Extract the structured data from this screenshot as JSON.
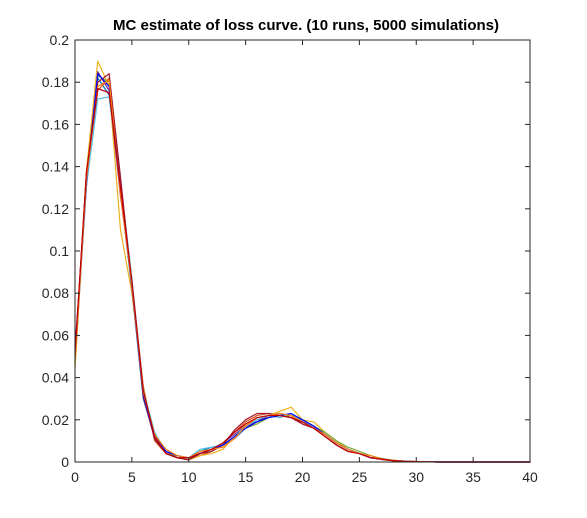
{
  "chart_data": {
    "type": "line",
    "title": "MC estimate of loss curve. (10 runs, 5000 simulations)",
    "xlabel": "",
    "ylabel": "",
    "xlim": [
      0,
      40
    ],
    "ylim": [
      0,
      0.2
    ],
    "xticks": [
      0,
      5,
      10,
      15,
      20,
      25,
      30,
      35,
      40
    ],
    "xtick_labels": [
      "0",
      "5",
      "10",
      "15",
      "20",
      "25",
      "30",
      "35",
      "40"
    ],
    "yticks": [
      0,
      0.02,
      0.04,
      0.06,
      0.08,
      0.1,
      0.12,
      0.14,
      0.16,
      0.18,
      0.2
    ],
    "ytick_labels": [
      "0",
      "0.02",
      "0.04",
      "0.06",
      "0.08",
      "0.1",
      "0.12",
      "0.14",
      "0.16",
      "0.18",
      "0.2"
    ],
    "grid": false,
    "x": [
      0,
      1,
      2,
      3,
      4,
      5,
      6,
      7,
      8,
      9,
      10,
      11,
      12,
      13,
      14,
      15,
      16,
      17,
      18,
      19,
      20,
      21,
      22,
      23,
      24,
      25,
      26,
      27,
      28,
      29,
      30,
      31,
      32,
      33,
      34,
      35,
      36,
      37,
      38,
      39,
      40
    ],
    "series": [
      {
        "color": "#0072BD",
        "values": [
          0.05,
          0.135,
          0.182,
          0.174,
          0.128,
          0.082,
          0.03,
          0.012,
          0.004,
          0.002,
          0.002,
          0.005,
          0.007,
          0.008,
          0.011,
          0.016,
          0.02,
          0.021,
          0.023,
          0.022,
          0.019,
          0.017,
          0.013,
          0.009,
          0.006,
          0.004,
          0.002,
          0.0015,
          0.0008,
          0.0004,
          0.0002,
          0.0001,
          0.0001,
          0,
          0,
          0,
          0,
          0,
          0,
          0,
          0
        ]
      },
      {
        "color": "#D95319",
        "values": [
          0.046,
          0.132,
          0.176,
          0.182,
          0.131,
          0.085,
          0.036,
          0.01,
          0.004,
          0.002,
          0.002,
          0.003,
          0.005,
          0.009,
          0.014,
          0.019,
          0.022,
          0.023,
          0.022,
          0.022,
          0.018,
          0.016,
          0.012,
          0.008,
          0.005,
          0.004,
          0.002,
          0.0012,
          0.0006,
          0.0003,
          0.0002,
          0.0001,
          0,
          0,
          0,
          0,
          0,
          0,
          0,
          0,
          0
        ]
      },
      {
        "color": "#EDB120",
        "values": [
          0.044,
          0.138,
          0.19,
          0.178,
          0.11,
          0.08,
          0.035,
          0.013,
          0.005,
          0.002,
          0.001,
          0.003,
          0.004,
          0.006,
          0.012,
          0.018,
          0.021,
          0.022,
          0.024,
          0.026,
          0.02,
          0.019,
          0.014,
          0.01,
          0.006,
          0.004,
          0.003,
          0.0015,
          0.0009,
          0.0004,
          0.0002,
          0.0001,
          0,
          0,
          0,
          0,
          0,
          0,
          0,
          0,
          0
        ]
      },
      {
        "color": "#7E2F8E",
        "values": [
          0.054,
          0.13,
          0.185,
          0.176,
          0.126,
          0.086,
          0.033,
          0.011,
          0.004,
          0.003,
          0.002,
          0.004,
          0.006,
          0.009,
          0.013,
          0.017,
          0.019,
          0.022,
          0.023,
          0.021,
          0.019,
          0.016,
          0.013,
          0.009,
          0.006,
          0.004,
          0.002,
          0.0013,
          0.0007,
          0.0003,
          0.0002,
          0.0001,
          0,
          0,
          0,
          0,
          0,
          0,
          0,
          0,
          0
        ]
      },
      {
        "color": "#77AC30",
        "values": [
          0.05,
          0.134,
          0.183,
          0.18,
          0.132,
          0.083,
          0.032,
          0.012,
          0.005,
          0.002,
          0.002,
          0.004,
          0.006,
          0.008,
          0.012,
          0.016,
          0.018,
          0.021,
          0.022,
          0.022,
          0.02,
          0.017,
          0.014,
          0.01,
          0.007,
          0.005,
          0.003,
          0.0016,
          0.0008,
          0.0004,
          0.0002,
          0.0001,
          0,
          0,
          0,
          0,
          0,
          0,
          0,
          0,
          0
        ]
      },
      {
        "color": "#4DBEEE",
        "values": [
          0.048,
          0.131,
          0.172,
          0.173,
          0.133,
          0.087,
          0.034,
          0.014,
          0.005,
          0.003,
          0.002,
          0.006,
          0.007,
          0.008,
          0.012,
          0.017,
          0.02,
          0.022,
          0.021,
          0.023,
          0.019,
          0.017,
          0.013,
          0.009,
          0.006,
          0.004,
          0.002,
          0.0014,
          0.0007,
          0.0003,
          0.0002,
          0.0001,
          0,
          0,
          0,
          0,
          0,
          0,
          0,
          0,
          0
        ]
      },
      {
        "color": "#A2142F",
        "values": [
          0.052,
          0.136,
          0.18,
          0.184,
          0.135,
          0.084,
          0.031,
          0.011,
          0.004,
          0.002,
          0.001,
          0.004,
          0.005,
          0.008,
          0.015,
          0.02,
          0.023,
          0.023,
          0.022,
          0.021,
          0.018,
          0.016,
          0.012,
          0.008,
          0.005,
          0.004,
          0.002,
          0.0012,
          0.0006,
          0.0003,
          0.0001,
          0.0001,
          0,
          0,
          0,
          0,
          0,
          0,
          0,
          0,
          0
        ]
      },
      {
        "color": "#0000FF",
        "values": [
          0.049,
          0.133,
          0.184,
          0.178,
          0.129,
          0.083,
          0.032,
          0.012,
          0.005,
          0.003,
          0.002,
          0.004,
          0.006,
          0.008,
          0.012,
          0.016,
          0.019,
          0.021,
          0.022,
          0.023,
          0.02,
          0.017,
          0.013,
          0.009,
          0.006,
          0.004,
          0.002,
          0.0014,
          0.0007,
          0.0003,
          0.0002,
          0.0001,
          0,
          0,
          0,
          0,
          0,
          0,
          0,
          0,
          0
        ]
      },
      {
        "color": "#FF7F0E",
        "values": [
          0.047,
          0.134,
          0.178,
          0.181,
          0.127,
          0.084,
          0.033,
          0.013,
          0.006,
          0.003,
          0.002,
          0.005,
          0.006,
          0.007,
          0.011,
          0.017,
          0.021,
          0.022,
          0.023,
          0.022,
          0.019,
          0.016,
          0.013,
          0.009,
          0.006,
          0.004,
          0.003,
          0.0014,
          0.0007,
          0.0003,
          0.0002,
          0.0001,
          0,
          0,
          0,
          0,
          0,
          0,
          0,
          0,
          0
        ]
      },
      {
        "color": "#C00000",
        "values": [
          0.051,
          0.137,
          0.177,
          0.175,
          0.13,
          0.086,
          0.034,
          0.012,
          0.004,
          0.002,
          0.002,
          0.004,
          0.006,
          0.009,
          0.014,
          0.018,
          0.021,
          0.022,
          0.022,
          0.021,
          0.019,
          0.016,
          0.012,
          0.008,
          0.005,
          0.004,
          0.002,
          0.0013,
          0.0006,
          0.0003,
          0.0002,
          0.0001,
          0,
          0,
          0,
          0,
          0,
          0,
          0,
          0,
          0
        ]
      }
    ]
  }
}
